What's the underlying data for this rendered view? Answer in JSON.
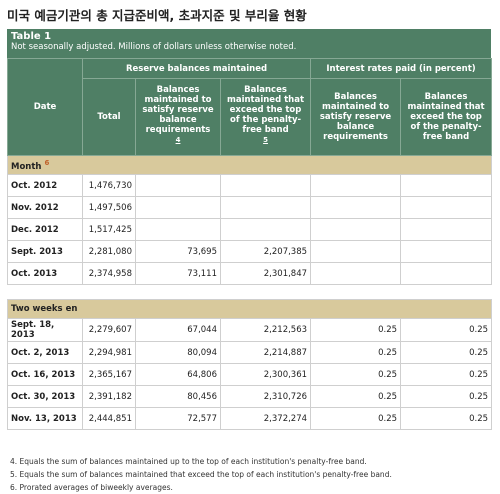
{
  "title": "미국 예금기관의 총 지급준비액, 초과지준 및 부리율 현황",
  "caption": {
    "name": "Table 1",
    "note": "Not seasonally adjusted. Millions of dollars unless otherwise noted."
  },
  "header": {
    "date": "Date",
    "groups": [
      "Reserve balances maintained",
      "Interest rates paid (in percent)"
    ],
    "columns": [
      {
        "label": "Total"
      },
      {
        "label": "Balances maintained to satisfy reserve balance requirements",
        "note": "4"
      },
      {
        "label": "Balances maintained that exceed the top of the penalty-free band",
        "note": "5"
      },
      {
        "label": "Balances maintained to satisfy reserve balance requirements"
      },
      {
        "label": "Balances maintained that exceed the top of the penalty-free band"
      }
    ]
  },
  "sections": [
    {
      "label": "Month",
      "note": "6",
      "rows": [
        [
          "Oct. 2012",
          "1,476,730"
        ],
        [
          "Nov. 2012",
          "1,497,506"
        ],
        [
          "Dec. 2012",
          "1,517,425"
        ],
        [
          "Sept. 2013",
          "2,281,080",
          "73,695",
          "2,207,385"
        ],
        [
          "Oct. 2013",
          "2,374,958",
          "73,111",
          "2,301,847"
        ]
      ]
    },
    {
      "label": "Two weeks en",
      "rows": [
        [
          "Sept. 18, 2013",
          "2,279,607",
          "67,044",
          "2,212,563",
          "0.25",
          "0.25"
        ],
        [
          "Oct. 2, 2013",
          "2,294,981",
          "80,094",
          "2,214,887",
          "0.25",
          "0.25"
        ],
        [
          "Oct. 16, 2013",
          "2,365,167",
          "64,806",
          "2,300,361",
          "0.25",
          "0.25"
        ],
        [
          "Oct. 30, 2013",
          "2,391,182",
          "80,456",
          "2,310,726",
          "0.25",
          "0.25"
        ],
        [
          "Nov. 13, 2013",
          "2,444,851",
          "72,577",
          "2,372,274",
          "0.25",
          "0.25"
        ]
      ]
    }
  ],
  "footnotes": [
    "4.  Equals the sum of balances maintained up to the top of each institution's penalty-free band.",
    "5.  Equals the sum of balances maintained that exceed the top of each institution's penalty-free band.",
    "6.  Prorated averages of biweekly averages."
  ]
}
